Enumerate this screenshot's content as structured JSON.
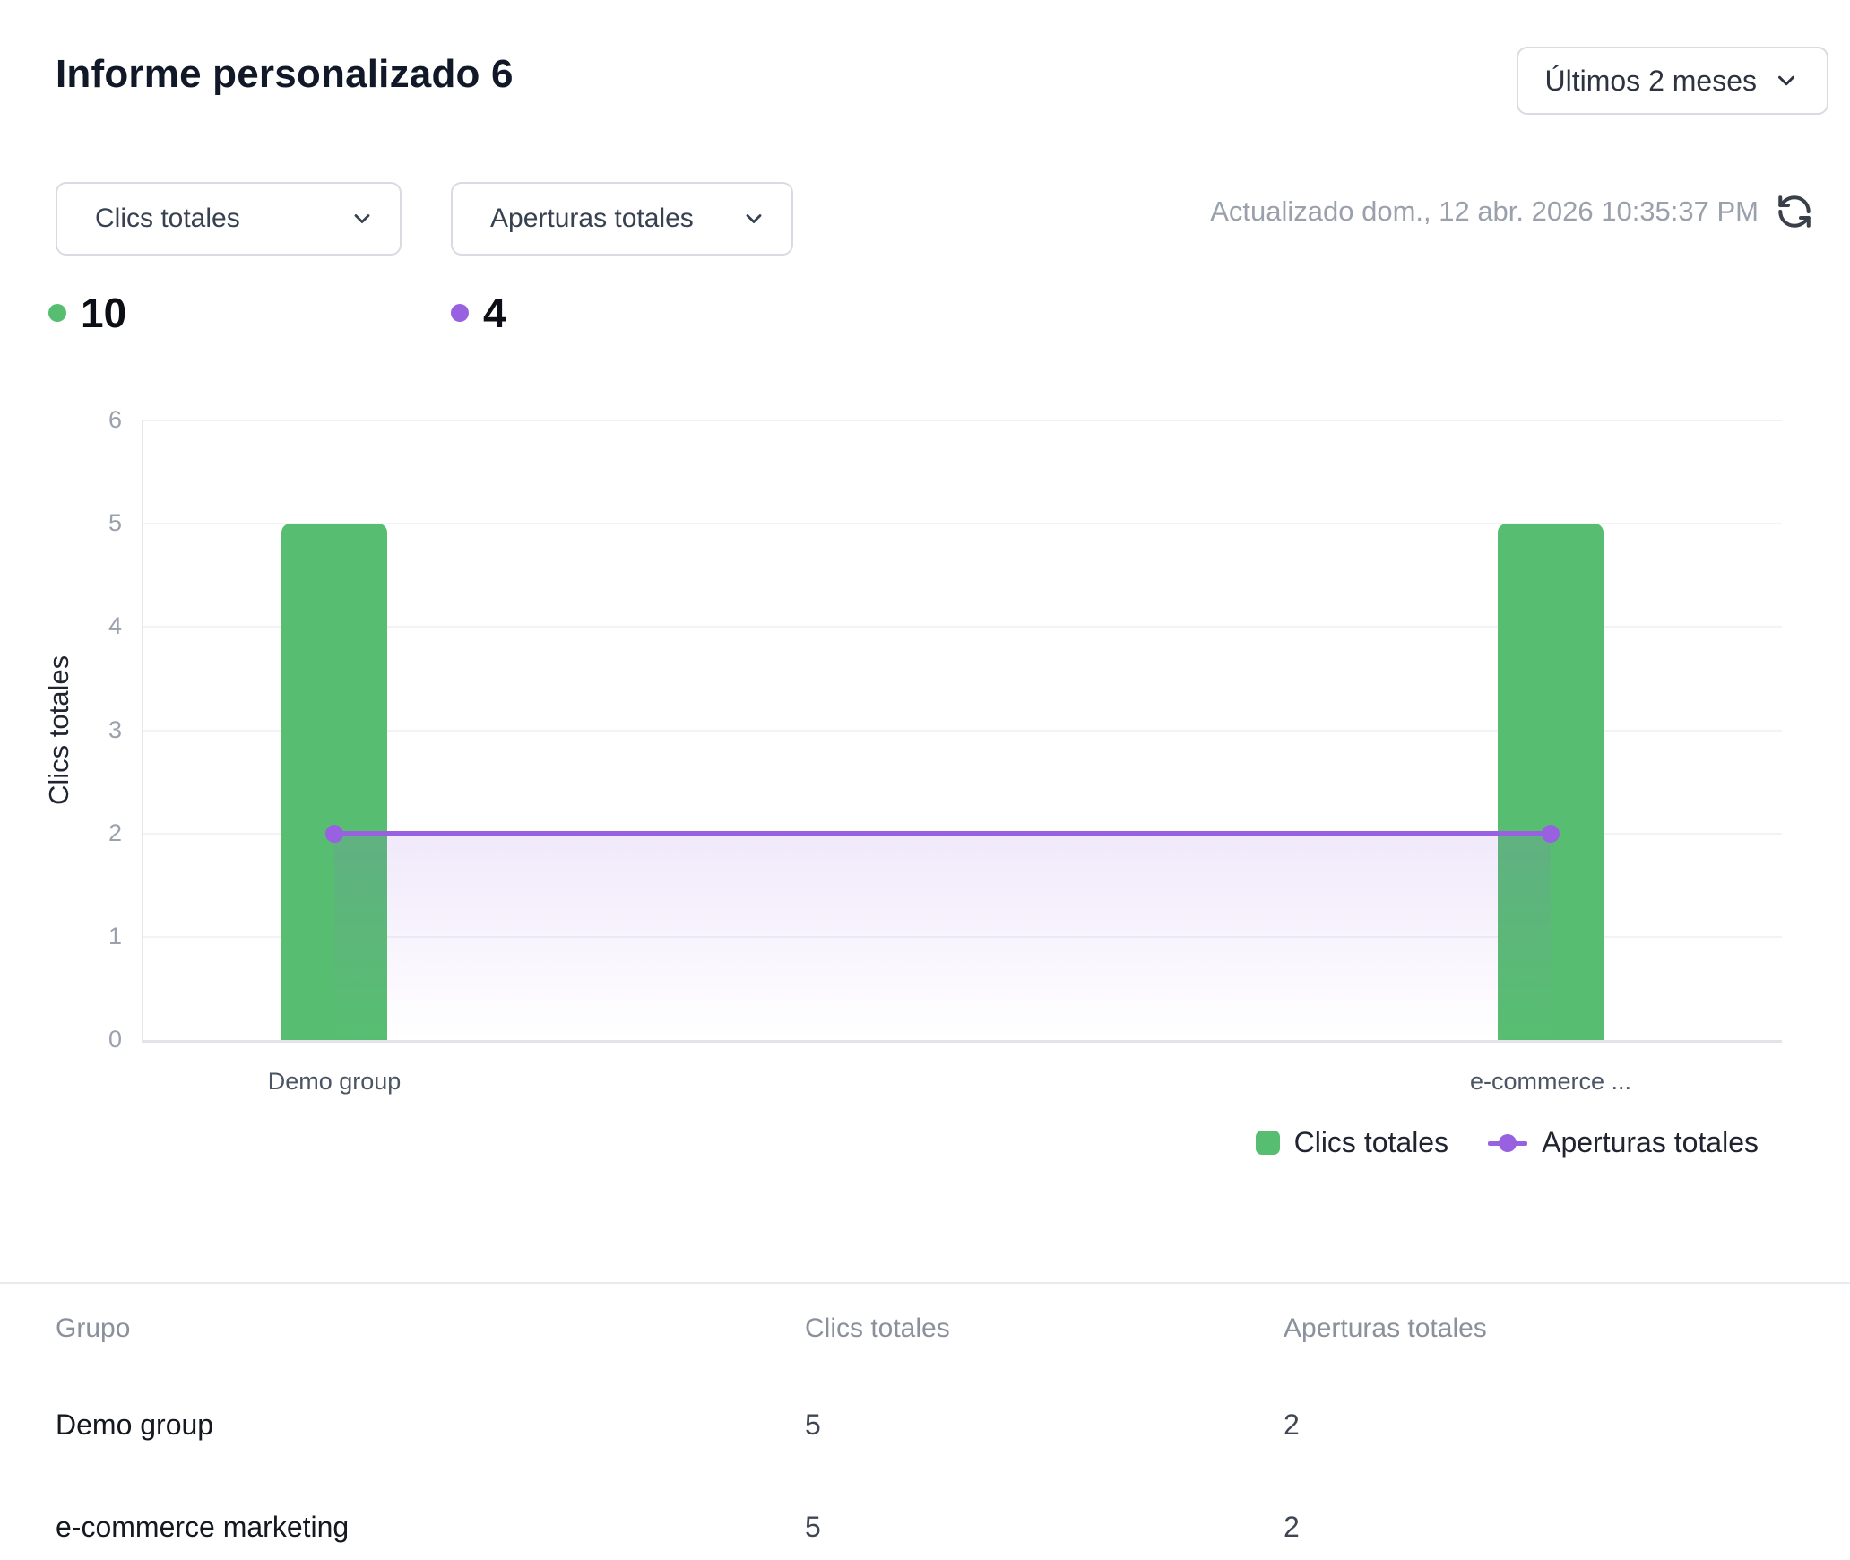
{
  "header": {
    "title": "Informe personalizado 6",
    "period_label": "Últimos 2 meses"
  },
  "controls": {
    "metric_selector_1": "Clics totales",
    "metric_selector_2": "Aperturas totales",
    "updated_text": "Actualizado dom., 12 abr. 2026 10:35:37 PM"
  },
  "totals": {
    "clicks_total": "10",
    "opens_total": "4"
  },
  "colors": {
    "clicks_green": "#57be71",
    "opens_purple": "#9861df",
    "grid": "#f2f3f6",
    "axis": "#e5e7eb",
    "muted_text": "#9aa1ac"
  },
  "chart_data": {
    "type": "bar",
    "categories": [
      "Demo group",
      "e-commerce ..."
    ],
    "series": [
      {
        "name": "Clics totales",
        "type": "bar",
        "color": "#57be71",
        "values": [
          5,
          5
        ]
      },
      {
        "name": "Aperturas totales",
        "type": "line",
        "color": "#9861df",
        "values": [
          2,
          2
        ]
      }
    ],
    "title": "",
    "xlabel": "",
    "ylabel": "Clics totales",
    "ylim": [
      0,
      6
    ],
    "yticks": [
      0,
      1,
      2,
      3,
      4,
      5,
      6
    ],
    "grid": true,
    "legend_position": "bottom-right"
  },
  "legend": {
    "items": [
      {
        "label": "Clics totales",
        "marker": "square"
      },
      {
        "label": "Aperturas totales",
        "marker": "line-dot"
      }
    ]
  },
  "table": {
    "columns": [
      "Grupo",
      "Clics totales",
      "Aperturas totales"
    ],
    "rows": [
      [
        "Demo group",
        "5",
        "2"
      ],
      [
        "e-commerce marketing",
        "5",
        "2"
      ]
    ]
  }
}
